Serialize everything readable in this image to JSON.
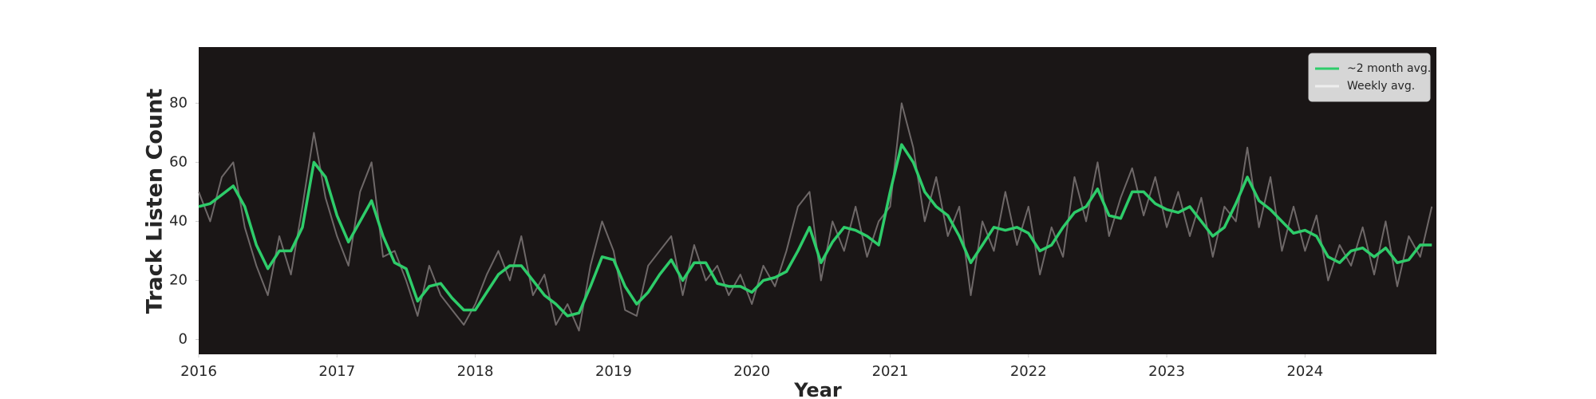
{
  "chart_data": {
    "type": "line",
    "x_label": "Year",
    "y_label": "Track Listen Count",
    "x": [
      2016,
      2016.083,
      2016.167,
      2016.25,
      2016.333,
      2016.417,
      2016.5,
      2016.583,
      2016.667,
      2016.75,
      2016.833,
      2016.917,
      2017,
      2017.083,
      2017.167,
      2017.25,
      2017.333,
      2017.417,
      2017.5,
      2017.583,
      2017.667,
      2017.75,
      2017.833,
      2017.917,
      2018,
      2018.083,
      2018.167,
      2018.25,
      2018.333,
      2018.417,
      2018.5,
      2018.583,
      2018.667,
      2018.75,
      2018.833,
      2018.917,
      2019,
      2019.083,
      2019.167,
      2019.25,
      2019.333,
      2019.417,
      2019.5,
      2019.583,
      2019.667,
      2019.75,
      2019.833,
      2019.917,
      2020,
      2020.083,
      2020.167,
      2020.25,
      2020.333,
      2020.417,
      2020.5,
      2020.583,
      2020.667,
      2020.75,
      2020.833,
      2020.917,
      2021,
      2021.083,
      2021.167,
      2021.25,
      2021.333,
      2021.417,
      2021.5,
      2021.583,
      2021.667,
      2021.75,
      2021.833,
      2021.917,
      2022,
      2022.083,
      2022.167,
      2022.25,
      2022.333,
      2022.417,
      2022.5,
      2022.583,
      2022.667,
      2022.75,
      2022.833,
      2022.917,
      2023,
      2023.083,
      2023.167,
      2023.25,
      2023.333,
      2023.417,
      2023.5,
      2023.583,
      2023.667,
      2023.75,
      2023.833,
      2023.917,
      2024,
      2024.083,
      2024.167,
      2024.25,
      2024.333,
      2024.417,
      2024.5,
      2024.583,
      2024.667,
      2024.75,
      2024.833,
      2024.917
    ],
    "series": [
      {
        "name": "~2 month avg.",
        "color": "#2ecc6a",
        "values": [
          45,
          46,
          49,
          52,
          45,
          32,
          24,
          30,
          30,
          38,
          60,
          55,
          42,
          33,
          40,
          47,
          35,
          26,
          24,
          13,
          18,
          19,
          14,
          10,
          10,
          16,
          22,
          25,
          25,
          20,
          15,
          12,
          8,
          9,
          18,
          28,
          27,
          18,
          12,
          16,
          22,
          27,
          20,
          26,
          26,
          19,
          18,
          18,
          16,
          20,
          21,
          23,
          30,
          38,
          26,
          33,
          38,
          37,
          35,
          32,
          50,
          66,
          60,
          50,
          45,
          42,
          35,
          26,
          32,
          38,
          37,
          38,
          36,
          30,
          32,
          38,
          43,
          45,
          51,
          42,
          41,
          50,
          50,
          46,
          44,
          43,
          45,
          40,
          35,
          38,
          46,
          55,
          47,
          44,
          40,
          36,
          37,
          35,
          28,
          26,
          30,
          31,
          28,
          31,
          26,
          27,
          32,
          32
        ]
      },
      {
        "name": "Weekly avg.",
        "color": "#6e6868",
        "values": [
          50,
          40,
          55,
          60,
          38,
          25,
          15,
          35,
          22,
          45,
          70,
          48,
          35,
          25,
          50,
          60,
          28,
          30,
          20,
          8,
          25,
          15,
          10,
          5,
          12,
          22,
          30,
          20,
          35,
          15,
          22,
          5,
          12,
          3,
          25,
          40,
          30,
          10,
          8,
          25,
          30,
          35,
          15,
          32,
          20,
          25,
          15,
          22,
          12,
          25,
          18,
          30,
          45,
          50,
          20,
          40,
          30,
          45,
          28,
          40,
          45,
          80,
          65,
          40,
          55,
          35,
          45,
          15,
          40,
          30,
          50,
          32,
          45,
          22,
          38,
          28,
          55,
          40,
          60,
          35,
          48,
          58,
          42,
          55,
          38,
          50,
          35,
          48,
          28,
          45,
          40,
          65,
          38,
          55,
          30,
          45,
          30,
          42,
          20,
          32,
          25,
          38,
          22,
          40,
          18,
          35,
          28,
          45
        ]
      }
    ],
    "xlim": [
      2016,
      2024.95
    ],
    "xticks": [
      2016,
      2017,
      2018,
      2019,
      2020,
      2021,
      2022,
      2023,
      2024
    ],
    "ylim": [
      -5,
      99
    ],
    "yticks": [
      0,
      20,
      40,
      60,
      80
    ],
    "background": "#1a1616",
    "legend": "upper-right"
  }
}
